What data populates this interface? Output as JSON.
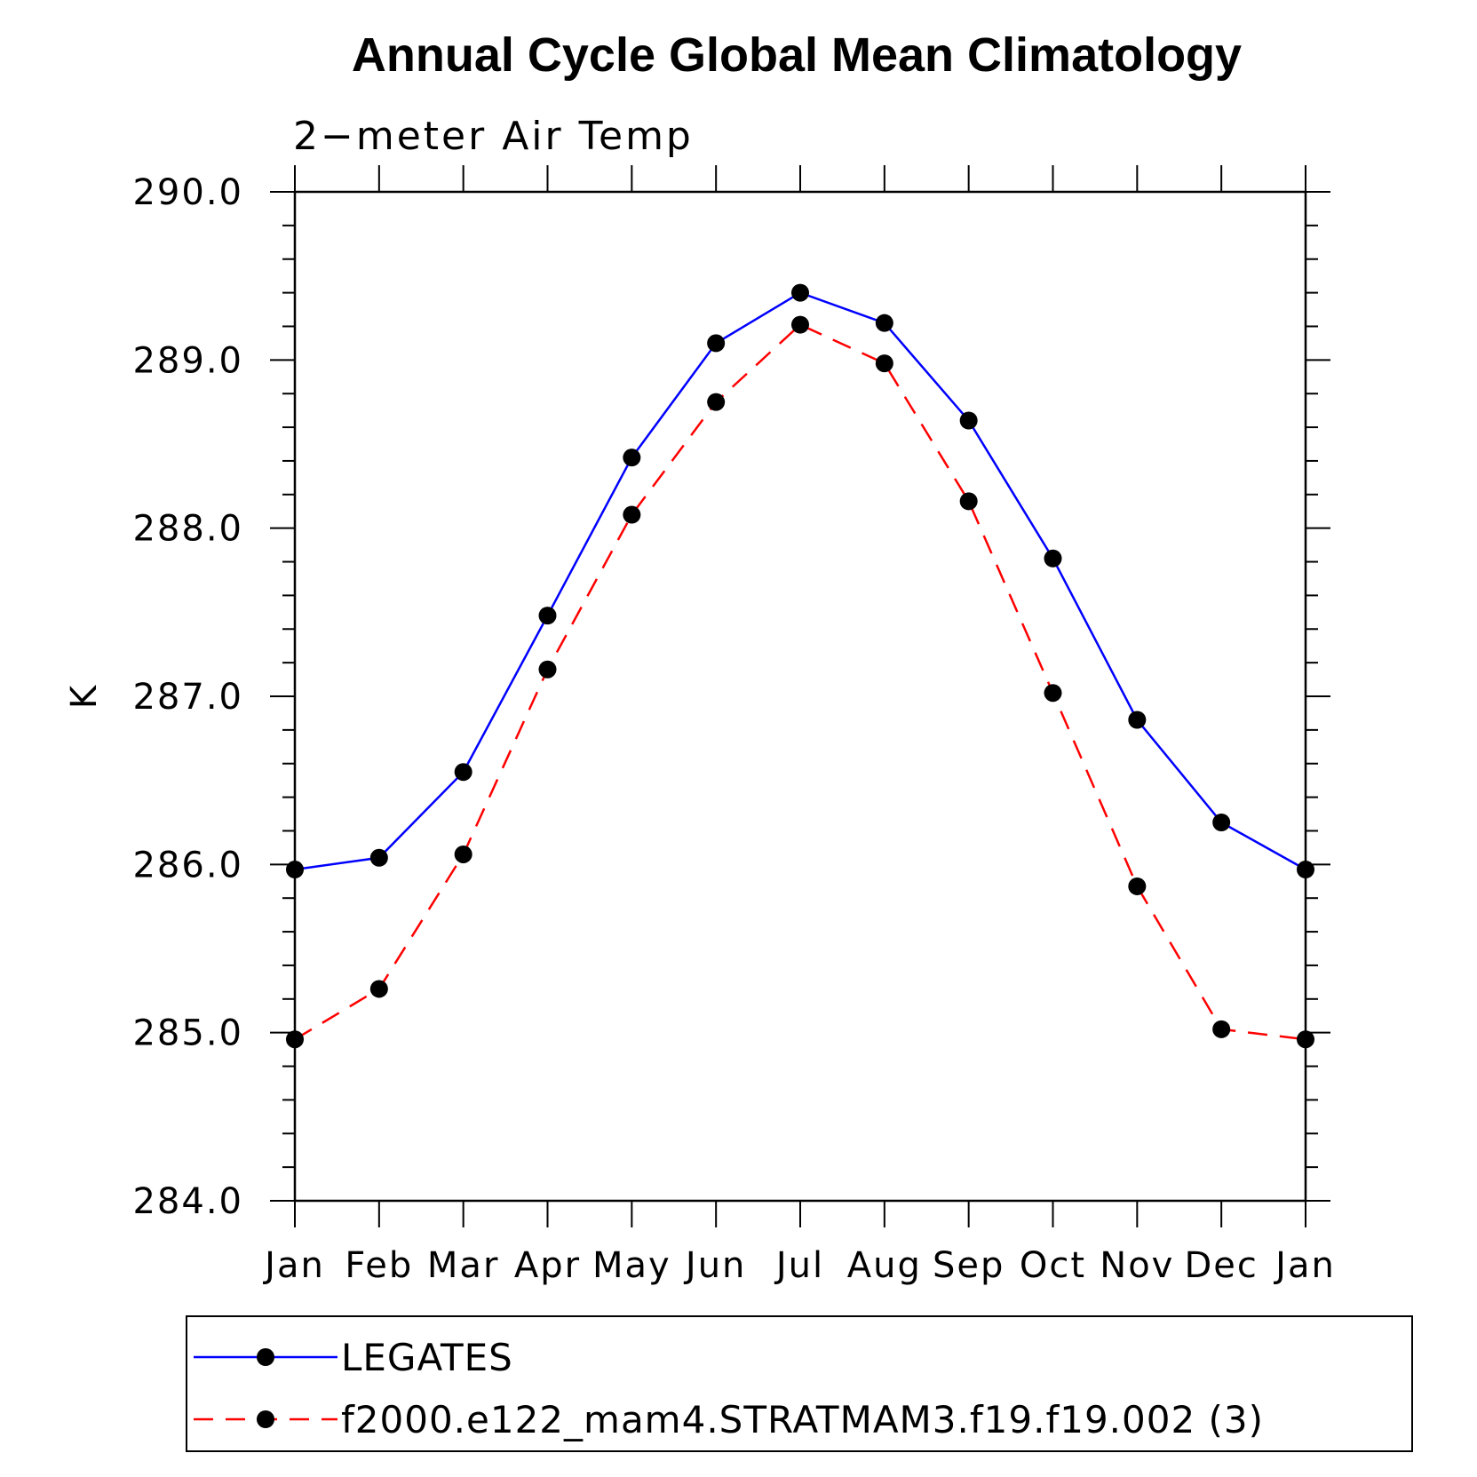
{
  "chart_data": {
    "type": "line",
    "title": "Annual Cycle Global Mean Climatology",
    "subtitle": "2−meter Air Temp",
    "ylabel": "K",
    "xlabel": "",
    "ylim": [
      284.0,
      290.0
    ],
    "y_ticks": [
      "284.0",
      "285.0",
      "286.0",
      "287.0",
      "288.0",
      "289.0",
      "290.0"
    ],
    "categories": [
      "Jan",
      "Feb",
      "Mar",
      "Apr",
      "May",
      "Jun",
      "Jul",
      "Aug",
      "Sep",
      "Oct",
      "Nov",
      "Dec",
      "Jan"
    ],
    "grid": false,
    "legend_position": "bottom",
    "series": [
      {
        "name": "LEGATES",
        "color": "#0000ff",
        "dash": "solid",
        "marker": "filled-circle",
        "values": [
          285.97,
          286.04,
          286.55,
          287.48,
          288.42,
          289.1,
          289.4,
          289.22,
          288.64,
          287.82,
          286.86,
          286.25,
          285.97
        ]
      },
      {
        "name": "f2000.e122_mam4.STRATMAM3.f19.f19.002 (3)",
        "color": "#ff0000",
        "dash": "dashed",
        "marker": "filled-circle",
        "values": [
          284.96,
          285.26,
          286.06,
          287.16,
          288.08,
          288.75,
          289.21,
          288.98,
          288.16,
          287.02,
          285.87,
          285.02,
          284.96
        ]
      }
    ]
  }
}
